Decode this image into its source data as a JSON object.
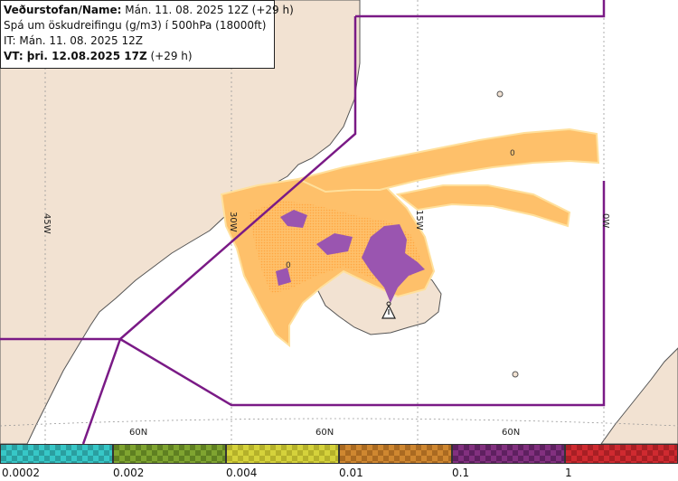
{
  "info": {
    "producer_label": "Veðurstofan/Name:",
    "producer_value": "Mán. 11. 08. 2025 12Z (+29 h)",
    "title": "Spá um öskudreifingu (g/m3) í 500hPa (18000ft)",
    "issue_time": "IT: Mán. 11. 08. 2025 12Z",
    "valid_label": "VT: þri. 12.08.2025 17Z",
    "valid_offset": "(+29 h)"
  },
  "grid_labels": {
    "lon_45w": "45W",
    "lon_30w": "30W",
    "lon_15w": "15W",
    "lon_0w": "0W",
    "lat_a": "60N",
    "lat_b": "60N",
    "lat_c": "60N"
  },
  "contour_labels": [
    "0",
    "0"
  ],
  "volcano_icon": "warning-triangle-icon",
  "legend": {
    "ticks": [
      "0.0002",
      "0.002",
      "0.004",
      "0.01",
      "0.1",
      "1"
    ],
    "colors": [
      "#37c7c7",
      "#7fa430",
      "#d5d23b",
      "#cf8730",
      "#82307f",
      "#cf2a30"
    ]
  },
  "colors": {
    "land": "#f2e2d2",
    "sea": "#ffffff",
    "coast": "#555555",
    "boundary": "#7a1a86",
    "ash_low": "#fec06a",
    "ash_mid": "#ffa640",
    "ash_high": "#9a55b0"
  }
}
